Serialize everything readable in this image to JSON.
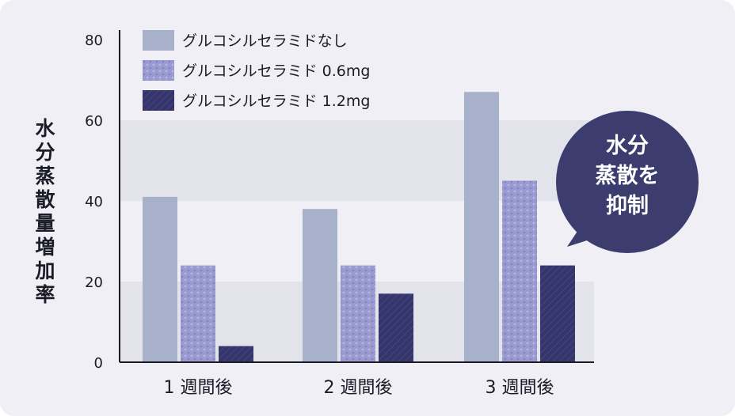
{
  "chart_data": {
    "type": "bar",
    "categories": [
      "1 週間後",
      "2 週間後",
      "3 週間後"
    ],
    "series": [
      {
        "name": "グルコシルセラミドなし",
        "values": [
          41,
          38,
          67
        ]
      },
      {
        "name": "グルコシルセラミド 0.6mg",
        "values": [
          24,
          24,
          45
        ]
      },
      {
        "name": "グルコシルセラミド 1.2mg",
        "values": [
          4,
          17,
          24
        ]
      }
    ],
    "ylabel": "水分蒸散量増加率",
    "xlabel": "",
    "ylim": [
      0,
      80
    ],
    "yticks": [
      0,
      20,
      40,
      60,
      80
    ],
    "legend_position": "top-left",
    "colors": {
      "series0": "#a8b1ca",
      "series1": "#9a9ad0",
      "series2": "#35356b",
      "band": "#e3e3ec",
      "axis": "#1c1c28",
      "bubble": "#3c3c6e"
    }
  },
  "callout": {
    "text": "水分\n蒸散を\n抑制"
  }
}
